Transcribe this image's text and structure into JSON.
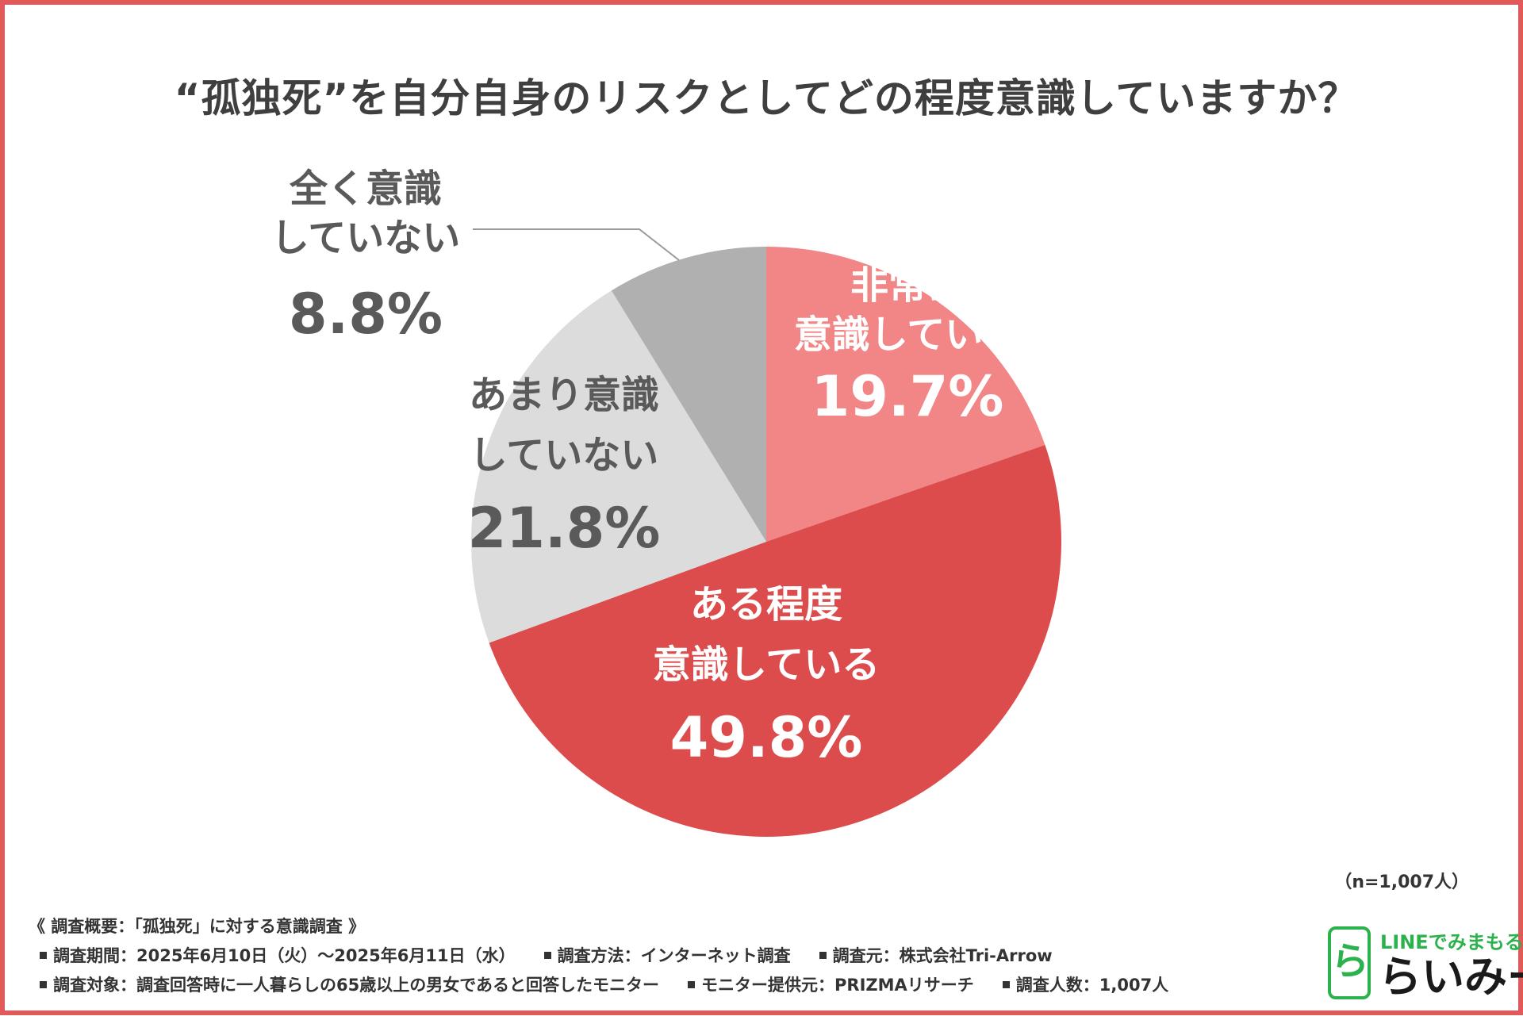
{
  "chart_data": {
    "type": "pie",
    "title": "“孤独死”を自分自身のリスクとしてどの程度意識していますか？",
    "slices": [
      {
        "label_lines": [
          "非常に",
          "意識している"
        ],
        "value": 19.7,
        "value_label": "19.7%",
        "color": "#f28585",
        "text_color": "#ffffff"
      },
      {
        "label_lines": [
          "ある程度",
          "意識している"
        ],
        "value": 49.8,
        "value_label": "49.8%",
        "color": "#dd4c4c",
        "text_color": "#ffffff"
      },
      {
        "label_lines": [
          "あまり意識",
          "していない"
        ],
        "value": 21.8,
        "value_label": "21.8%",
        "color": "#dcdcdc",
        "text_color": "#5a5a5a"
      },
      {
        "label_lines": [
          "全く意識",
          "していない"
        ],
        "value": 8.8,
        "value_label": "8.8%",
        "color": "#b0b0b0",
        "text_color": "#5a5a5a"
      }
    ],
    "start_angle": "top",
    "direction": "clockwise",
    "sample_size": "（n=1,007人）"
  },
  "footer": {
    "heading": "《 調査概要：「孤独死」に対する意識調査 》",
    "rows": [
      [
        "調査期間：2025年6月10日（火）～2025年6月11日（水）",
        "調査方法：インターネット調査",
        "調査元：株式会社Tri-Arrow"
      ],
      [
        "調査対象：調査回答時に一人暮らしの65歳以上の男女であると回答したモニター",
        "モニター提供元：PRIZMAリサーチ",
        "調査人数：1,007人"
      ]
    ]
  },
  "logo": {
    "tagline": "LINEでみまもる",
    "name": "らいみー",
    "glyph": "ら",
    "color": "#2bb24c"
  },
  "colors": {
    "border": "#e05a5a",
    "title": "#3f3f3f",
    "leader_line": "#9a9a9a"
  }
}
